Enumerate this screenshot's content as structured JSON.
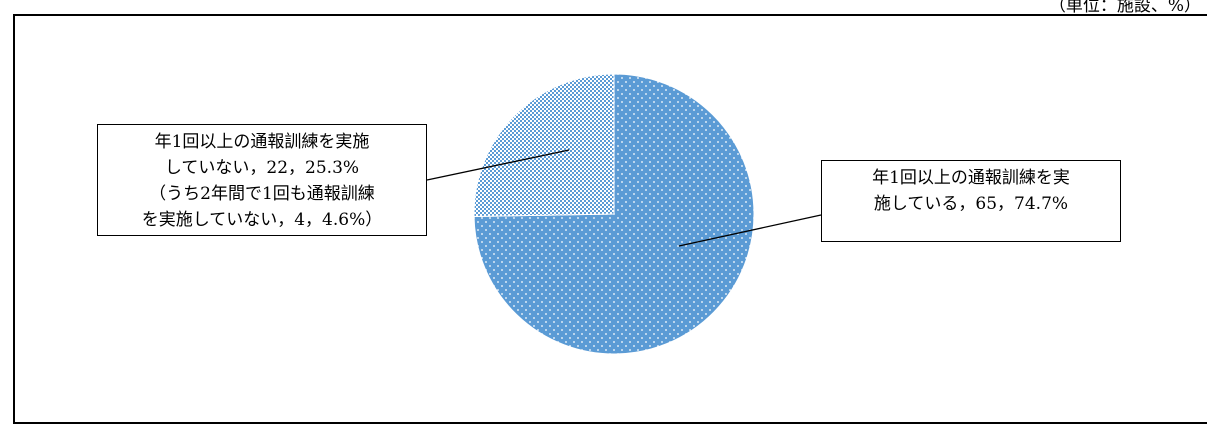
{
  "unit_label": "（単位：施設、%）",
  "chart_data": {
    "type": "pie",
    "slices": [
      {
        "label": "年1回以上の通報訓練を実施している",
        "count": 65,
        "percent": 74.7,
        "color": "#5B9BD5",
        "pattern": "dots",
        "callout_lines": [
          "年1回以上の通報訓練を実",
          "施している，65，74.7%"
        ]
      },
      {
        "label": "年1回以上の通報訓練を実施していない",
        "count": 22,
        "percent": 25.3,
        "color": "#9DC3E6",
        "pattern": "checker",
        "callout_lines": [
          "年1回以上の通報訓練を実施",
          "していない，22，25.3%",
          "（うち2年間で1回も通報訓練",
          "を実施していない，4，4.6%）"
        ]
      }
    ]
  }
}
